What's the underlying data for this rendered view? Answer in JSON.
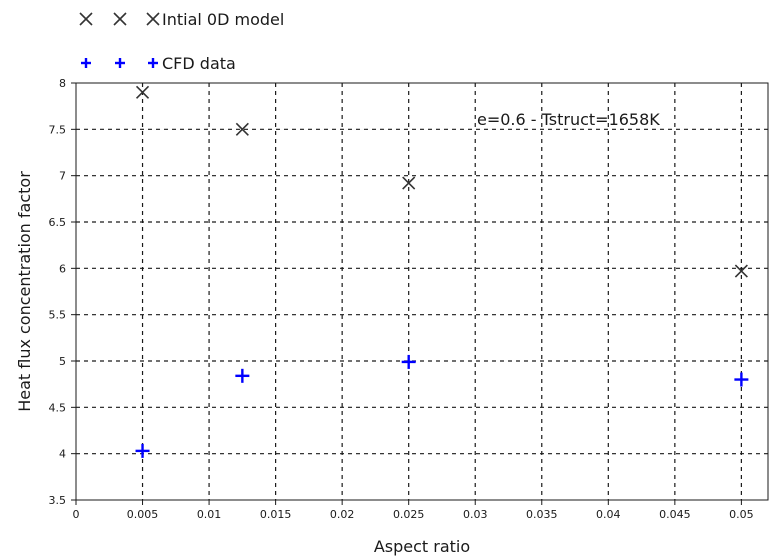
{
  "chart_data": {
    "type": "scatter",
    "title": "",
    "xlabel": "Aspect ratio",
    "ylabel": "Heat flux concentration factor",
    "xlim": [
      0,
      0.052
    ],
    "ylim": [
      3.5,
      8
    ],
    "x_ticks": [
      0,
      0.005,
      0.01,
      0.015,
      0.02,
      0.025,
      0.03,
      0.035,
      0.04,
      0.045,
      0.05
    ],
    "x_tick_labels": [
      "0",
      "0.005",
      "0.01",
      "0.015",
      "0.02",
      "0.025",
      "0.03",
      "0.035",
      "0.04",
      "0.045",
      "0.05"
    ],
    "y_ticks": [
      3.5,
      4,
      4.5,
      5,
      5.5,
      6,
      6.5,
      7,
      7.5,
      8
    ],
    "y_tick_labels": [
      "3.5",
      "4",
      "4.5",
      "5",
      "5.5",
      "6",
      "6.5",
      "7",
      "7.5",
      "8"
    ],
    "grid": true,
    "legend_position": "top-left, outside plot",
    "annotation": "e=0.6 - Tstruct=1658K",
    "series": [
      {
        "name": "Intial 0D model",
        "marker": "x-mark",
        "color": "#333333",
        "points": [
          {
            "x": 0.005,
            "y": 7.9
          },
          {
            "x": 0.0125,
            "y": 7.5
          },
          {
            "x": 0.025,
            "y": 6.92
          },
          {
            "x": 0.05,
            "y": 5.97
          }
        ]
      },
      {
        "name": "CFD data",
        "marker": "plus",
        "color": "#0000ff",
        "points": [
          {
            "x": 0.005,
            "y": 4.03
          },
          {
            "x": 0.0125,
            "y": 4.84
          },
          {
            "x": 0.025,
            "y": 4.99
          },
          {
            "x": 0.05,
            "y": 4.8
          }
        ]
      }
    ]
  }
}
